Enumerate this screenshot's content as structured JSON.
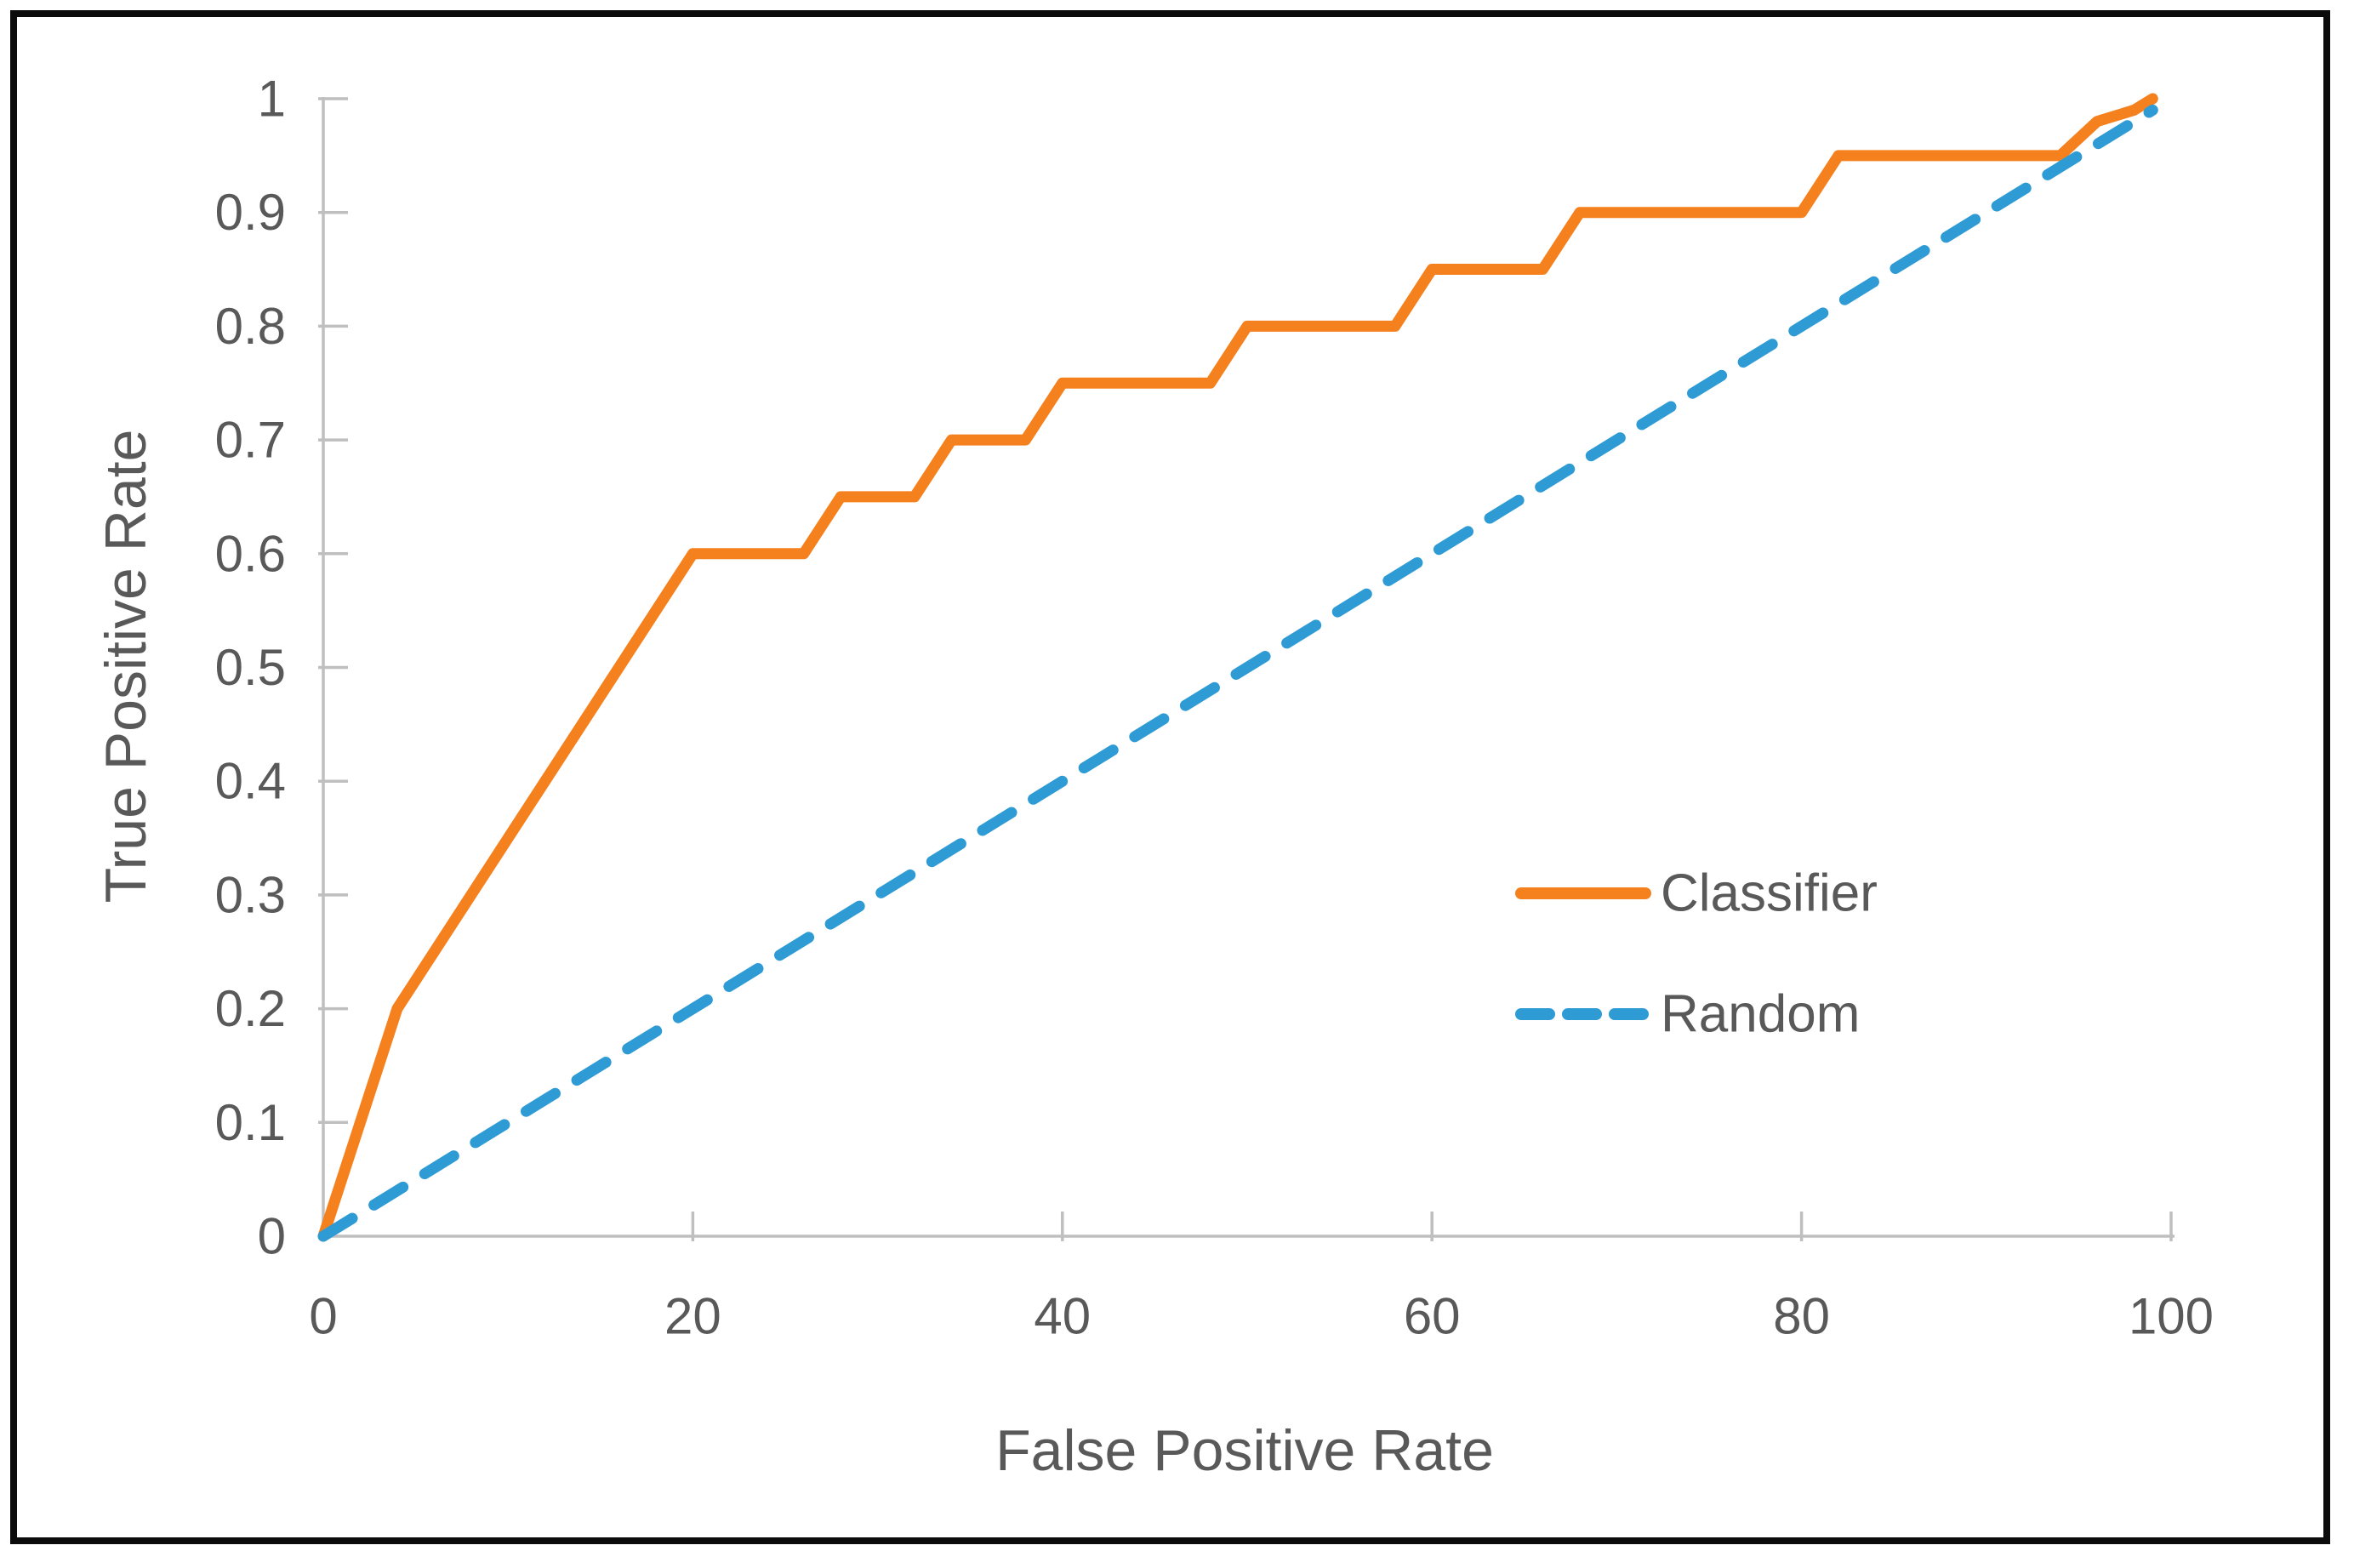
{
  "chart_data": {
    "type": "line",
    "title": "",
    "xlabel": "False Positive Rate",
    "ylabel": "True Positive Rate",
    "xlim": [
      0,
      100
    ],
    "ylim": [
      0,
      1
    ],
    "grid": false,
    "legend_position": "center-right",
    "x_ticks": [
      0,
      20,
      40,
      60,
      80,
      100
    ],
    "x_tick_labels": [
      "0",
      "20",
      "40",
      "60",
      "80",
      "100"
    ],
    "y_ticks": [
      0,
      0.1,
      0.2,
      0.3,
      0.4,
      0.5,
      0.6,
      0.7,
      0.8,
      0.9,
      1
    ],
    "y_tick_labels": [
      "0",
      "0.1",
      "0.2",
      "0.3",
      "0.4",
      "0.5",
      "0.6",
      "0.7",
      "0.8",
      "0.9",
      "1"
    ],
    "series": [
      {
        "name": "Classifier",
        "style": "solid",
        "color": "#F5811E",
        "points": [
          [
            0,
            0
          ],
          [
            4,
            0.2
          ],
          [
            20,
            0.6
          ],
          [
            26,
            0.6
          ],
          [
            28,
            0.65
          ],
          [
            32,
            0.65
          ],
          [
            34,
            0.7
          ],
          [
            38,
            0.7
          ],
          [
            40,
            0.75
          ],
          [
            48,
            0.75
          ],
          [
            50,
            0.8
          ],
          [
            58,
            0.8
          ],
          [
            60,
            0.85
          ],
          [
            66,
            0.85
          ],
          [
            68,
            0.9
          ],
          [
            80,
            0.9
          ],
          [
            82,
            0.95
          ],
          [
            94,
            0.95
          ],
          [
            96,
            0.98
          ],
          [
            98,
            0.99
          ],
          [
            99,
            1
          ]
        ]
      },
      {
        "name": "Random",
        "style": "dashed",
        "color": "#2E9BD5",
        "points": [
          [
            0,
            0
          ],
          [
            99,
            0.99
          ]
        ]
      }
    ],
    "colors": {
      "classifier": "#F5811E",
      "random": "#2E9BD5",
      "axis": "#BFBFBF",
      "text": "#595959",
      "border": "#000000",
      "background": "#FFFFFF"
    }
  }
}
